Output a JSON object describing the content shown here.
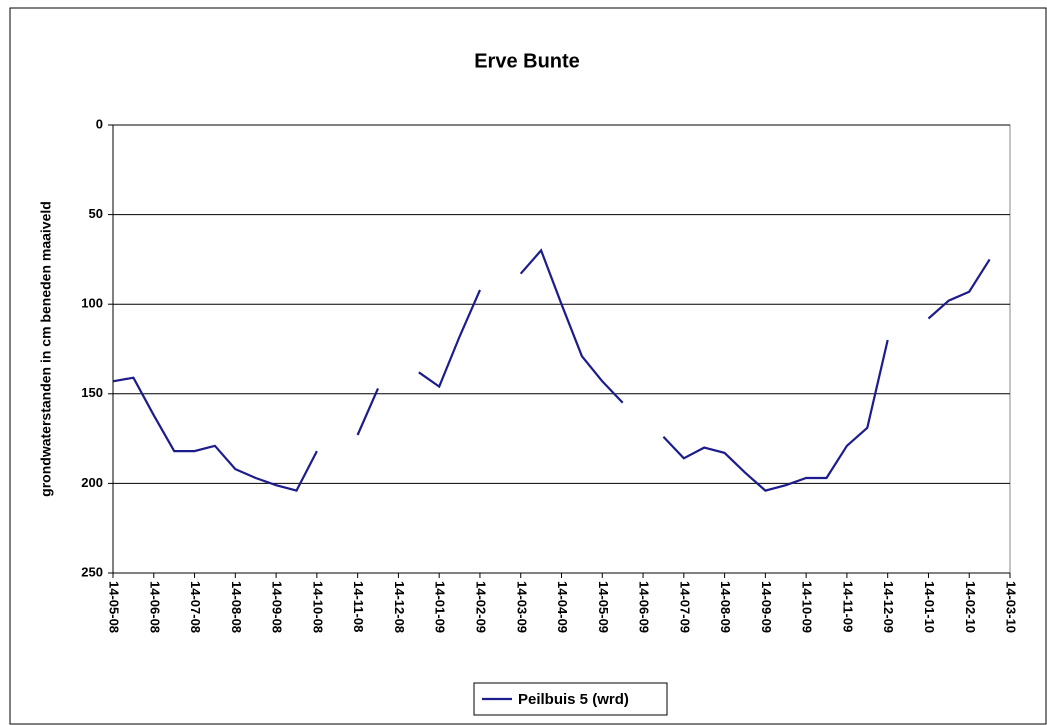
{
  "chart_data": {
    "type": "line",
    "title": "Erve Bunte",
    "y_label": "grondwaterstanden in cm beneden maaiveld",
    "categories": [
      "14-05-08",
      null,
      "14-06-08",
      null,
      "14-07-08",
      null,
      "14-08-08",
      null,
      "14-09-08",
      null,
      "14-10-08",
      null,
      "14-11-08",
      null,
      "14-12-08",
      null,
      "14-01-09",
      null,
      "14-02-09",
      null,
      "14-03-09",
      null,
      "14-04-09",
      null,
      "14-05-09",
      null,
      "14-06-09",
      null,
      "14-07-09",
      null,
      "14-08-09",
      null,
      "14-09-09",
      null,
      "14-10-09",
      null,
      "14-11-09",
      null,
      "14-12-09",
      null,
      "14-01-10",
      null,
      "14-02-10",
      null,
      "14-03-10"
    ],
    "series": [
      {
        "name": "Peilbuis 5 (wrd)",
        "color": "#1c1c8c",
        "values": [
          143,
          141,
          162,
          182,
          182,
          179,
          192,
          197,
          201,
          204,
          182,
          null,
          173,
          147,
          null,
          138,
          146,
          118,
          92,
          null,
          83,
          70,
          100,
          129,
          143,
          155,
          null,
          174,
          186,
          180,
          183,
          194,
          204,
          201,
          197,
          197,
          179,
          169,
          120,
          null,
          108,
          98,
          93,
          75,
          null
        ]
      }
    ],
    "ylim": [
      0,
      250
    ],
    "yticks": [
      0,
      50,
      100,
      150,
      200,
      250
    ],
    "y_inverted": true,
    "grid": true,
    "legend": "bottom"
  }
}
